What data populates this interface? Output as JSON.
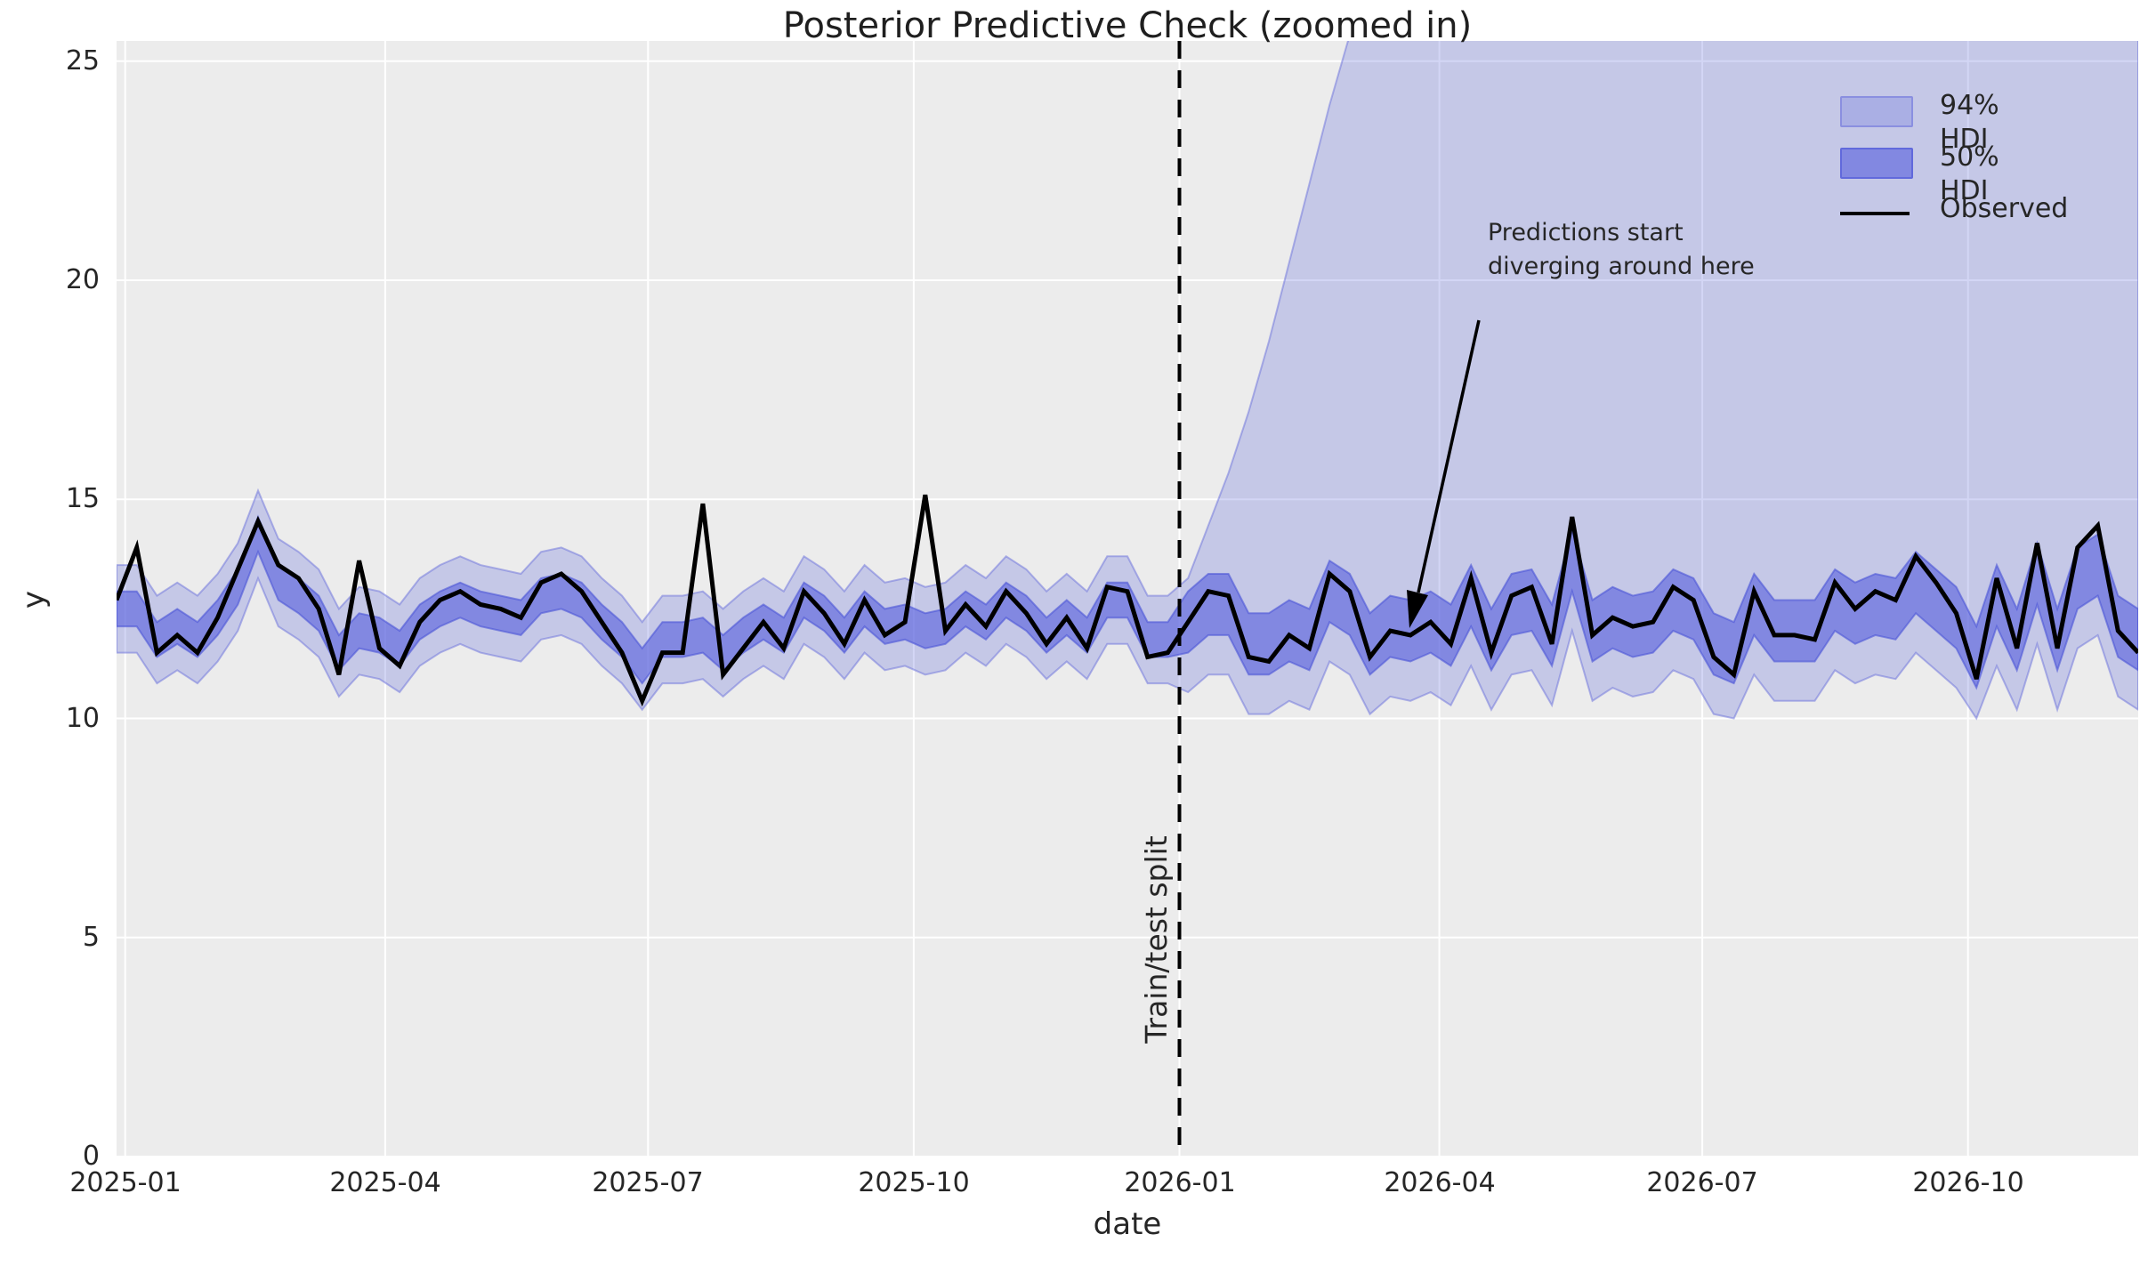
{
  "colors": {
    "figure_background": "#ffffff",
    "plot_background": "#ececec",
    "gridline": "#ffffff",
    "hdi94_fill": "rgba(105,112,219,0.29)",
    "hdi94_edge": "rgba(105,112,219,0.5)",
    "hdi50_fill": "rgba(90,98,222,0.63)",
    "hdi50_edge": "rgba(75,85,215,0.6)",
    "observed_line": "#000000",
    "split_line": "#000000",
    "text": "#262626"
  },
  "chart_data": {
    "type": "line",
    "title": "Posterior Predictive Check (zoomed in)",
    "xlabel": "date",
    "ylabel": "y",
    "ylim": [
      0,
      25.5
    ],
    "grid": true,
    "legend_position": "upper right",
    "legend": [
      "94% HDI",
      "50% HDI",
      "Observed"
    ],
    "x_tick_labels": [
      "2025-01",
      "2025-04",
      "2025-07",
      "2025-10",
      "2026-01",
      "2026-04",
      "2026-07",
      "2026-10"
    ],
    "y_tick_labels": [
      "0",
      "5",
      "10",
      "15",
      "20",
      "25"
    ],
    "y_tick_values": [
      0,
      5,
      10,
      15,
      20,
      25
    ],
    "x_start_date": "2024-12-29",
    "x_step_days": 7,
    "n_points": 101,
    "train_points": 53,
    "split_date": "2026-01-01",
    "annotations": {
      "split_label": "Train/test split",
      "diverging_lines": [
        "Predictions start",
        "diverging around here"
      ],
      "diverging_points_at_index": 64
    },
    "series": [
      {
        "name": "Observed",
        "values": [
          12.7,
          13.9,
          11.5,
          11.9,
          11.5,
          12.3,
          13.4,
          14.5,
          13.5,
          13.2,
          12.5,
          11.0,
          13.6,
          11.6,
          11.2,
          12.2,
          12.7,
          12.9,
          12.6,
          12.5,
          12.3,
          13.1,
          13.3,
          12.9,
          12.2,
          11.5,
          10.4,
          11.5,
          11.5,
          14.9,
          11.0,
          11.6,
          12.2,
          11.6,
          12.9,
          12.4,
          11.7,
          12.7,
          11.9,
          12.2,
          15.1,
          12.0,
          12.6,
          12.1,
          12.9,
          12.4,
          11.7,
          12.3,
          11.6,
          13.0,
          12.9,
          11.4,
          11.5,
          12.2,
          12.9,
          12.8,
          11.4,
          11.3,
          11.9,
          11.6,
          13.3,
          12.9,
          11.4,
          12.0,
          11.9,
          12.2,
          11.7,
          13.2,
          11.5,
          12.8,
          13.0,
          11.7,
          14.6,
          11.9,
          12.3,
          12.1,
          12.2,
          13.0,
          12.7,
          11.4,
          11.0,
          12.9,
          11.9,
          11.9,
          11.8,
          13.1,
          12.5,
          12.9,
          12.7,
          13.7,
          13.1,
          12.4,
          10.9,
          13.2,
          11.6,
          14.0,
          11.6,
          13.9,
          14.4,
          12.0,
          11.5
        ]
      },
      {
        "name": "94% HDI",
        "lower": [
          11.5,
          11.5,
          10.8,
          11.1,
          10.8,
          11.3,
          12.0,
          13.2,
          12.1,
          11.8,
          11.4,
          10.5,
          11.0,
          10.9,
          10.6,
          11.2,
          11.5,
          11.7,
          11.5,
          11.4,
          11.3,
          11.8,
          11.9,
          11.7,
          11.2,
          10.8,
          10.2,
          10.8,
          10.8,
          10.9,
          10.5,
          10.9,
          11.2,
          10.9,
          11.7,
          11.4,
          10.9,
          11.5,
          11.1,
          11.2,
          11.0,
          11.1,
          11.5,
          11.2,
          11.7,
          11.4,
          10.9,
          11.3,
          10.9,
          11.7,
          11.7,
          10.8,
          10.8,
          10.6,
          11.0,
          11.0,
          10.1,
          10.1,
          10.4,
          10.2,
          11.3,
          11.0,
          10.1,
          10.5,
          10.4,
          10.6,
          10.3,
          11.2,
          10.2,
          11.0,
          11.1,
          10.3,
          12.0,
          10.4,
          10.7,
          10.5,
          10.6,
          11.1,
          10.9,
          10.1,
          10.0,
          11.0,
          10.4,
          10.4,
          10.4,
          11.1,
          10.8,
          11.0,
          10.9,
          11.5,
          11.1,
          10.7,
          10.0,
          11.2,
          10.2,
          11.7,
          10.2,
          11.6,
          11.9,
          10.5,
          10.2
        ],
        "upper": [
          13.5,
          13.5,
          12.8,
          13.1,
          12.8,
          13.3,
          14.0,
          15.2,
          14.1,
          13.8,
          13.4,
          12.5,
          13.0,
          12.9,
          12.6,
          13.2,
          13.5,
          13.7,
          13.5,
          13.4,
          13.3,
          13.8,
          13.9,
          13.7,
          13.2,
          12.8,
          12.2,
          12.8,
          12.8,
          12.9,
          12.5,
          12.9,
          13.2,
          12.9,
          13.7,
          13.4,
          12.9,
          13.5,
          13.1,
          13.2,
          13.0,
          13.1,
          13.5,
          13.2,
          13.7,
          13.4,
          12.9,
          13.3,
          12.9,
          13.7,
          13.7,
          12.8,
          12.8,
          13.2,
          14.4,
          15.6,
          17.0,
          18.6,
          20.4,
          22.2,
          24.0,
          25.6,
          27.0,
          28.2,
          29.0,
          29.0,
          29.0,
          29.0,
          29.0,
          29.0,
          29.0,
          29.0,
          29.0,
          29.0,
          29.0,
          29.0,
          29.0,
          29.0,
          29.0,
          29.0,
          29.0,
          29.0,
          29.0,
          29.0,
          29.0,
          29.0,
          29.0,
          29.0,
          29.0,
          29.0,
          29.0,
          29.0,
          29.0,
          29.0,
          29.0,
          29.0,
          29.0,
          29.0,
          29.0,
          29.0,
          29.0
        ]
      },
      {
        "name": "50% HDI",
        "lower": [
          12.1,
          12.1,
          11.4,
          11.7,
          11.4,
          11.9,
          12.6,
          13.8,
          12.7,
          12.4,
          12.0,
          11.1,
          11.6,
          11.5,
          11.2,
          11.8,
          12.1,
          12.3,
          12.1,
          12.0,
          11.9,
          12.4,
          12.5,
          12.3,
          11.8,
          11.4,
          10.8,
          11.4,
          11.4,
          11.5,
          11.1,
          11.5,
          11.8,
          11.5,
          12.3,
          12.0,
          11.5,
          12.1,
          11.7,
          11.8,
          11.6,
          11.7,
          12.1,
          11.8,
          12.3,
          12.0,
          11.5,
          11.9,
          11.5,
          12.3,
          12.3,
          11.4,
          11.4,
          11.5,
          11.9,
          11.9,
          11.0,
          11.0,
          11.3,
          11.1,
          12.2,
          11.9,
          11.0,
          11.4,
          11.3,
          11.5,
          11.2,
          12.1,
          11.1,
          11.9,
          12.0,
          11.2,
          12.9,
          11.3,
          11.6,
          11.4,
          11.5,
          12.0,
          11.8,
          11.0,
          10.8,
          11.9,
          11.3,
          11.3,
          11.3,
          12.0,
          11.7,
          11.9,
          11.8,
          12.4,
          12.0,
          11.6,
          10.7,
          12.1,
          11.1,
          12.6,
          11.1,
          12.5,
          12.8,
          11.4,
          11.1
        ],
        "upper": [
          12.9,
          12.9,
          12.2,
          12.5,
          12.2,
          12.7,
          13.4,
          14.6,
          13.5,
          13.2,
          12.8,
          11.9,
          12.4,
          12.3,
          12.0,
          12.6,
          12.9,
          13.1,
          12.9,
          12.8,
          12.7,
          13.2,
          13.3,
          13.1,
          12.6,
          12.2,
          11.6,
          12.2,
          12.2,
          12.3,
          11.9,
          12.3,
          12.6,
          12.3,
          13.1,
          12.8,
          12.3,
          12.9,
          12.5,
          12.6,
          12.4,
          12.5,
          12.9,
          12.6,
          13.1,
          12.8,
          12.3,
          12.7,
          12.3,
          13.1,
          13.1,
          12.2,
          12.2,
          12.9,
          13.3,
          13.3,
          12.4,
          12.4,
          12.7,
          12.5,
          13.6,
          13.3,
          12.4,
          12.8,
          12.7,
          12.9,
          12.6,
          13.5,
          12.5,
          13.3,
          13.4,
          12.6,
          14.3,
          12.7,
          13.0,
          12.8,
          12.9,
          13.4,
          13.2,
          12.4,
          12.2,
          13.3,
          12.7,
          12.7,
          12.7,
          13.4,
          13.1,
          13.3,
          13.2,
          13.8,
          13.4,
          13.0,
          12.1,
          13.5,
          12.5,
          14.0,
          12.5,
          13.9,
          14.2,
          12.8,
          12.5
        ]
      }
    ]
  }
}
